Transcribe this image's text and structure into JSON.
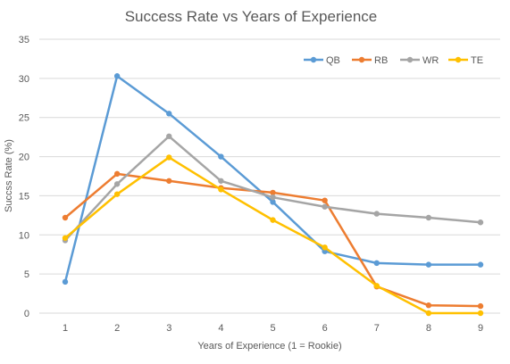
{
  "chart_data": {
    "type": "line",
    "title": "Success Rate vs Years of Experience",
    "xlabel": "Years of Experience (1 = Rookie)",
    "ylabel": "Succss Rate (%)",
    "x": [
      1,
      2,
      3,
      4,
      5,
      6,
      7,
      8,
      9
    ],
    "ylim": [
      0,
      35
    ],
    "yticks": [
      0,
      5,
      10,
      15,
      20,
      25,
      30,
      35
    ],
    "grid": true,
    "legend_position": "top-right",
    "series": [
      {
        "name": "QB",
        "color": "#5B9BD5",
        "values": [
          4.0,
          30.3,
          25.5,
          20.0,
          14.2,
          7.9,
          6.4,
          6.2,
          6.2
        ]
      },
      {
        "name": "RB",
        "color": "#ED7D31",
        "values": [
          12.2,
          17.8,
          16.9,
          16.0,
          15.4,
          14.4,
          3.4,
          1.0,
          0.9
        ]
      },
      {
        "name": "WR",
        "color": "#A5A5A5",
        "values": [
          9.3,
          16.5,
          22.6,
          16.9,
          14.8,
          13.6,
          12.7,
          12.2,
          11.6
        ]
      },
      {
        "name": "TE",
        "color": "#FFC000",
        "values": [
          9.6,
          15.2,
          19.9,
          15.8,
          11.9,
          8.4,
          3.5,
          0.0,
          0.0
        ]
      }
    ]
  }
}
